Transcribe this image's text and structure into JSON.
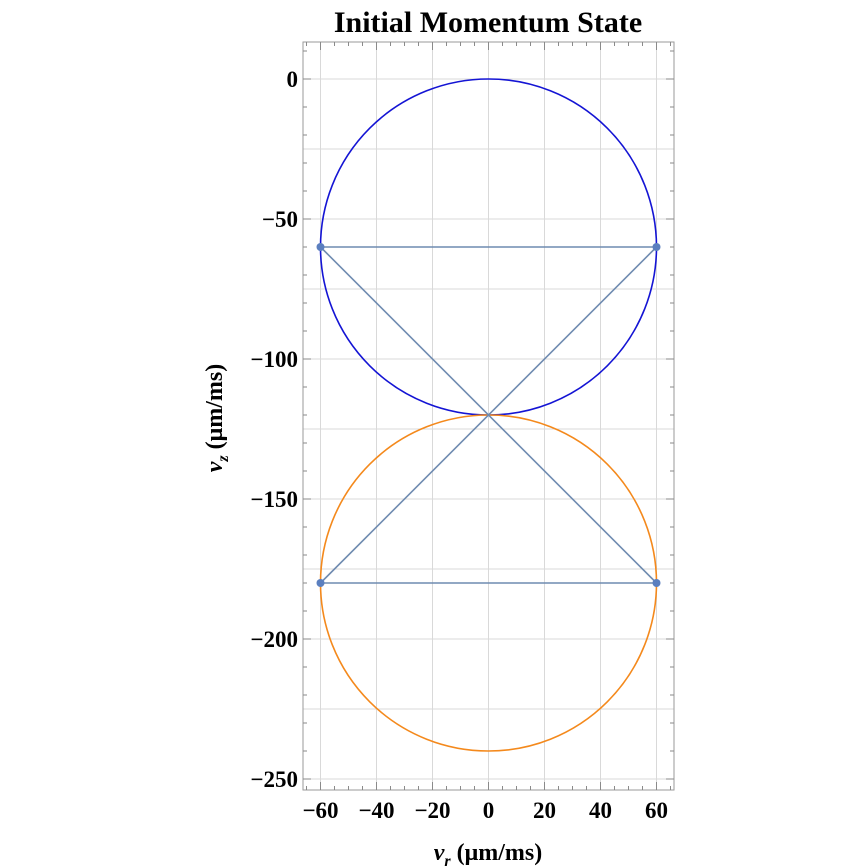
{
  "chart_data": {
    "type": "scatter",
    "title": "Initial Momentum State",
    "xlabel": {
      "base": "v",
      "sub": "r",
      "units": " (μm/ms)"
    },
    "ylabel": {
      "base": "v",
      "sub": "z",
      "units": " (μm/ms)"
    },
    "xlim": [
      -60,
      60
    ],
    "ylim": [
      -250,
      0
    ],
    "grid": true,
    "x_ticks": [
      -60,
      -40,
      -20,
      0,
      20,
      40,
      60
    ],
    "x_tick_labels": [
      "−60",
      "−40",
      "−20",
      "0",
      "20",
      "40",
      "60"
    ],
    "y_ticks": [
      0,
      -50,
      -100,
      -150,
      -200,
      -250
    ],
    "y_tick_labels": [
      "0",
      "−50",
      "−100",
      "−150",
      "−200",
      "−250"
    ],
    "grid_x": [
      -60,
      -40,
      -20,
      0,
      20,
      40,
      60
    ],
    "grid_y": [
      0,
      -25,
      -50,
      -75,
      -100,
      -125,
      -150,
      -175,
      -200,
      -225,
      -250
    ],
    "circles": [
      {
        "cx": 0,
        "cy": -60,
        "r": 60,
        "color": "#1414d4"
      },
      {
        "cx": 0,
        "cy": -180,
        "r": 60,
        "color": "#f4891c"
      }
    ],
    "lines": [
      {
        "points": [
          [
            -60,
            -60
          ],
          [
            60,
            -60
          ]
        ]
      },
      {
        "points": [
          [
            -60,
            -180
          ],
          [
            60,
            -180
          ]
        ]
      },
      {
        "points": [
          [
            -60,
            -60
          ],
          [
            60,
            -180
          ]
        ]
      },
      {
        "points": [
          [
            60,
            -60
          ],
          [
            -60,
            -180
          ]
        ]
      }
    ],
    "points": [
      [
        -60,
        -60
      ],
      [
        60,
        -60
      ],
      [
        -60,
        -180
      ],
      [
        60,
        -180
      ]
    ],
    "line_color": "#6f8bb0",
    "point_color": "#5b7fbf"
  }
}
